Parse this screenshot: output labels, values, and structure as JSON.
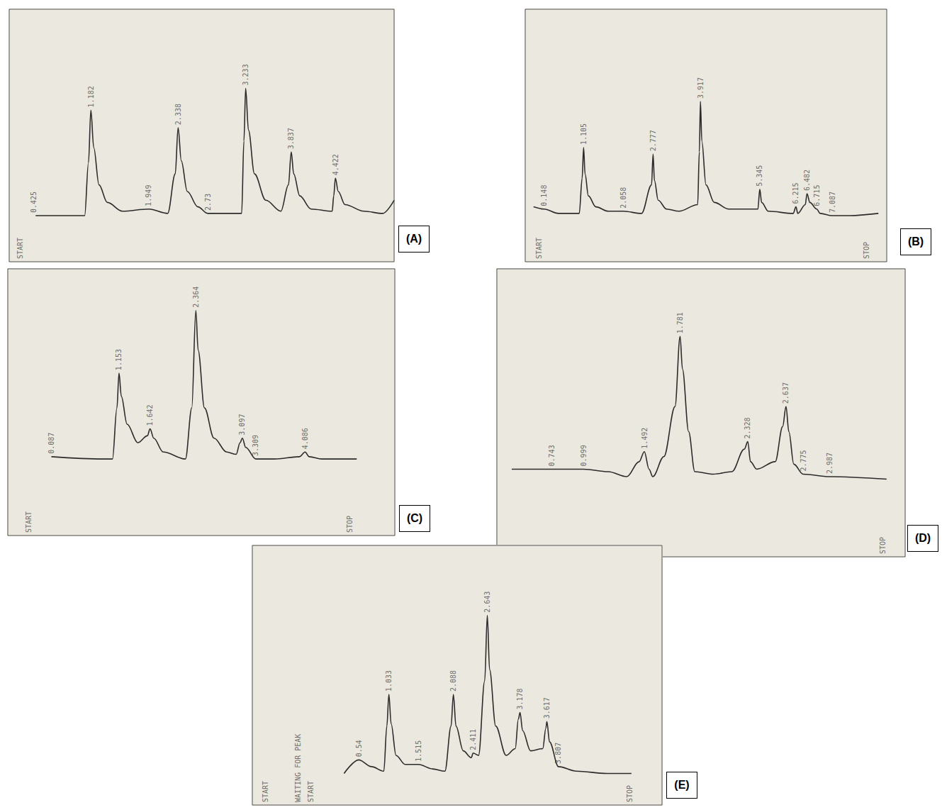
{
  "chart_data": [
    {
      "type": "line",
      "title": "(A)",
      "color": "#2b2b2b",
      "grid": false,
      "tick_labels": false,
      "xlim": [
        0.1,
        5.2
      ],
      "ylim": [
        0,
        115
      ],
      "x": [
        0.45,
        1.1,
        1.15,
        1.182,
        1.22,
        1.29,
        1.4,
        1.6,
        1.949,
        2.2,
        2.3,
        2.338,
        2.38,
        2.46,
        2.6,
        2.73,
        3.18,
        3.21,
        3.233,
        3.27,
        3.35,
        3.5,
        3.7,
        3.8,
        3.837,
        3.87,
        3.95,
        4.1,
        4.38,
        4.4,
        4.422,
        4.46,
        4.55,
        4.8,
        5.05,
        5.2
      ],
      "values": [
        21,
        21,
        45,
        69,
        52,
        35,
        27,
        23,
        24,
        22,
        40,
        61,
        46,
        32,
        25,
        22,
        22,
        55,
        79,
        60,
        40,
        28,
        23,
        35,
        50,
        40,
        30,
        24,
        23,
        30,
        38,
        32,
        26,
        23,
        22,
        28
      ],
      "annotations": [
        {
          "x": 0.25,
          "text": "START"
        },
        {
          "x": 0.425,
          "text": "0.425"
        },
        {
          "x": 1.182,
          "text": "1.182"
        },
        {
          "x": 1.949,
          "text": "1.949"
        },
        {
          "x": 2.338,
          "text": "2.338"
        },
        {
          "x": 2.73,
          "text": "2.73"
        },
        {
          "x": 3.233,
          "text": "3.233"
        },
        {
          "x": 3.837,
          "text": "3.837"
        },
        {
          "x": 4.422,
          "text": "4.422"
        }
      ]
    },
    {
      "type": "line",
      "title": "(B)",
      "color": "#2b2b2b",
      "grid": false,
      "tick_labels": false,
      "xlim": [
        -0.3,
        8.4
      ],
      "ylim": [
        0,
        115
      ],
      "x": [
        -0.1,
        0.15,
        0.5,
        1.0,
        1.07,
        1.105,
        1.14,
        1.22,
        1.4,
        1.7,
        2.058,
        2.5,
        2.74,
        2.777,
        2.81,
        2.9,
        3.1,
        3.4,
        3.85,
        3.89,
        3.917,
        3.95,
        4.05,
        4.25,
        4.6,
        5.3,
        5.345,
        5.39,
        5.55,
        6.15,
        6.215,
        6.26,
        6.44,
        6.482,
        6.55,
        6.715,
        6.8,
        7.087,
        7.5,
        8.2
      ],
      "values": [
        25,
        24,
        22,
        22,
        38,
        52,
        40,
        30,
        25,
        23,
        23,
        22,
        35,
        49,
        37,
        28,
        24,
        23,
        26,
        50,
        73,
        55,
        35,
        27,
        24,
        24,
        33,
        27,
        23,
        22,
        25,
        22,
        26,
        31,
        27,
        24,
        22,
        21,
        21,
        22
      ],
      "annotations": [
        {
          "x": 0.037,
          "text": "START"
        },
        {
          "x": 0.148,
          "text": "0.148"
        },
        {
          "x": 1.105,
          "text": "1.105"
        },
        {
          "x": 2.058,
          "text": "2.058"
        },
        {
          "x": 2.777,
          "text": "2.777"
        },
        {
          "x": 3.917,
          "text": "3.917"
        },
        {
          "x": 5.345,
          "text": "5.345"
        },
        {
          "x": 6.215,
          "text": "6.215"
        },
        {
          "x": 6.482,
          "text": "6.482"
        },
        {
          "x": 6.715,
          "text": "6.715"
        },
        {
          "x": 7.087,
          "text": "7.087"
        },
        {
          "x": 7.92,
          "text": "STOP"
        }
      ]
    },
    {
      "type": "line",
      "title": "(C)",
      "color": "#2b2b2b",
      "grid": false,
      "tick_labels": false,
      "xlim": [
        -0.6,
        5.5
      ],
      "ylim": [
        0,
        115
      ],
      "x": [
        0.087,
        0.9,
        1.05,
        1.12,
        1.153,
        1.19,
        1.28,
        1.45,
        1.6,
        1.642,
        1.7,
        1.85,
        2.2,
        2.3,
        2.364,
        2.4,
        2.5,
        2.65,
        2.85,
        3.0,
        3.06,
        3.097,
        3.15,
        3.309,
        3.6,
        4.0,
        4.086,
        4.15,
        4.35,
        4.9
      ],
      "values": [
        34,
        33,
        33,
        55,
        70,
        60,
        48,
        40,
        43,
        46,
        42,
        36,
        33,
        55,
        97,
        80,
        55,
        42,
        36,
        35,
        40,
        42,
        38,
        33,
        33,
        34,
        36,
        34,
        33,
        33
      ],
      "annotations": [
        {
          "x": -0.27,
          "text": "START"
        },
        {
          "x": 0.087,
          "text": "0.087"
        },
        {
          "x": 1.153,
          "text": "1.153"
        },
        {
          "x": 1.642,
          "text": "1.642"
        },
        {
          "x": 2.364,
          "text": "2.364"
        },
        {
          "x": 3.097,
          "text": "3.097"
        },
        {
          "x": 3.309,
          "text": "3.309"
        },
        {
          "x": 4.086,
          "text": "4.086"
        },
        {
          "x": 4.79,
          "text": "STOP"
        }
      ]
    },
    {
      "type": "line",
      "title": "(D)",
      "color": "#2b2b2b",
      "grid": false,
      "tick_labels": false,
      "xlim": [
        0.3,
        3.6
      ],
      "ylim": [
        0,
        115
      ],
      "x": [
        0.42,
        0.7,
        1.0,
        1.2,
        1.35,
        1.45,
        1.492,
        1.53,
        1.56,
        1.65,
        1.74,
        1.781,
        1.8,
        1.85,
        1.9,
        2.05,
        2.2,
        2.3,
        2.328,
        2.35,
        2.4,
        2.55,
        2.61,
        2.637,
        2.66,
        2.7,
        2.775,
        2.987,
        3.45
      ],
      "values": [
        35,
        35,
        35,
        34,
        32,
        38,
        42,
        35,
        32,
        40,
        60,
        88,
        75,
        50,
        34,
        33,
        34,
        43,
        46,
        38,
        35,
        38,
        52,
        60,
        50,
        37,
        33,
        32,
        31
      ],
      "annotations": [
        {
          "x": 0.743,
          "text": "0.743"
        },
        {
          "x": 0.999,
          "text": "0.999"
        },
        {
          "x": 1.492,
          "text": "1.492"
        },
        {
          "x": 1.781,
          "text": "1.781"
        },
        {
          "x": 2.328,
          "text": "2.328"
        },
        {
          "x": 2.637,
          "text": "2.637"
        },
        {
          "x": 2.775,
          "text": "2.775"
        },
        {
          "x": 2.987,
          "text": "2.987"
        },
        {
          "x": 3.42,
          "text": "STOP"
        }
      ]
    },
    {
      "type": "line",
      "title": "(E)",
      "color": "#2b2b2b",
      "grid": false,
      "tick_labels": false,
      "xlim": [
        -1.2,
        5.5
      ],
      "ylim": [
        0,
        115
      ],
      "x": [
        0.3,
        0.54,
        0.75,
        0.95,
        1.0,
        1.033,
        1.07,
        1.15,
        1.3,
        1.515,
        1.75,
        1.95,
        2.05,
        2.088,
        2.13,
        2.25,
        2.38,
        2.411,
        2.5,
        2.6,
        2.643,
        2.68,
        2.78,
        2.95,
        3.1,
        3.15,
        3.178,
        3.22,
        3.35,
        3.55,
        3.6,
        3.617,
        3.66,
        3.807,
        4.1,
        4.6,
        5.0
      ],
      "values": [
        14,
        20,
        17,
        15,
        35,
        49,
        36,
        22,
        18,
        18,
        16,
        15,
        35,
        49,
        35,
        24,
        21,
        23,
        22,
        55,
        84,
        60,
        35,
        22,
        25,
        38,
        41,
        33,
        24,
        25,
        34,
        37,
        28,
        17,
        15,
        14,
        14
      ],
      "annotations": [
        {
          "x": -0.99,
          "text": "START"
        },
        {
          "x": -0.45,
          "text": "WAITING FOR PEAK"
        },
        {
          "x": -0.24,
          "text": "START"
        },
        {
          "x": 0.54,
          "text": "0.54"
        },
        {
          "x": 1.033,
          "text": "1.033"
        },
        {
          "x": 1.515,
          "text": "1.515"
        },
        {
          "x": 2.088,
          "text": "2.088"
        },
        {
          "x": 2.411,
          "text": "2.411"
        },
        {
          "x": 2.643,
          "text": "2.643"
        },
        {
          "x": 3.178,
          "text": "3.178"
        },
        {
          "x": 3.617,
          "text": "3.617"
        },
        {
          "x": 3.807,
          "text": "3.807"
        },
        {
          "x": 4.97,
          "text": "STOP"
        }
      ]
    }
  ]
}
